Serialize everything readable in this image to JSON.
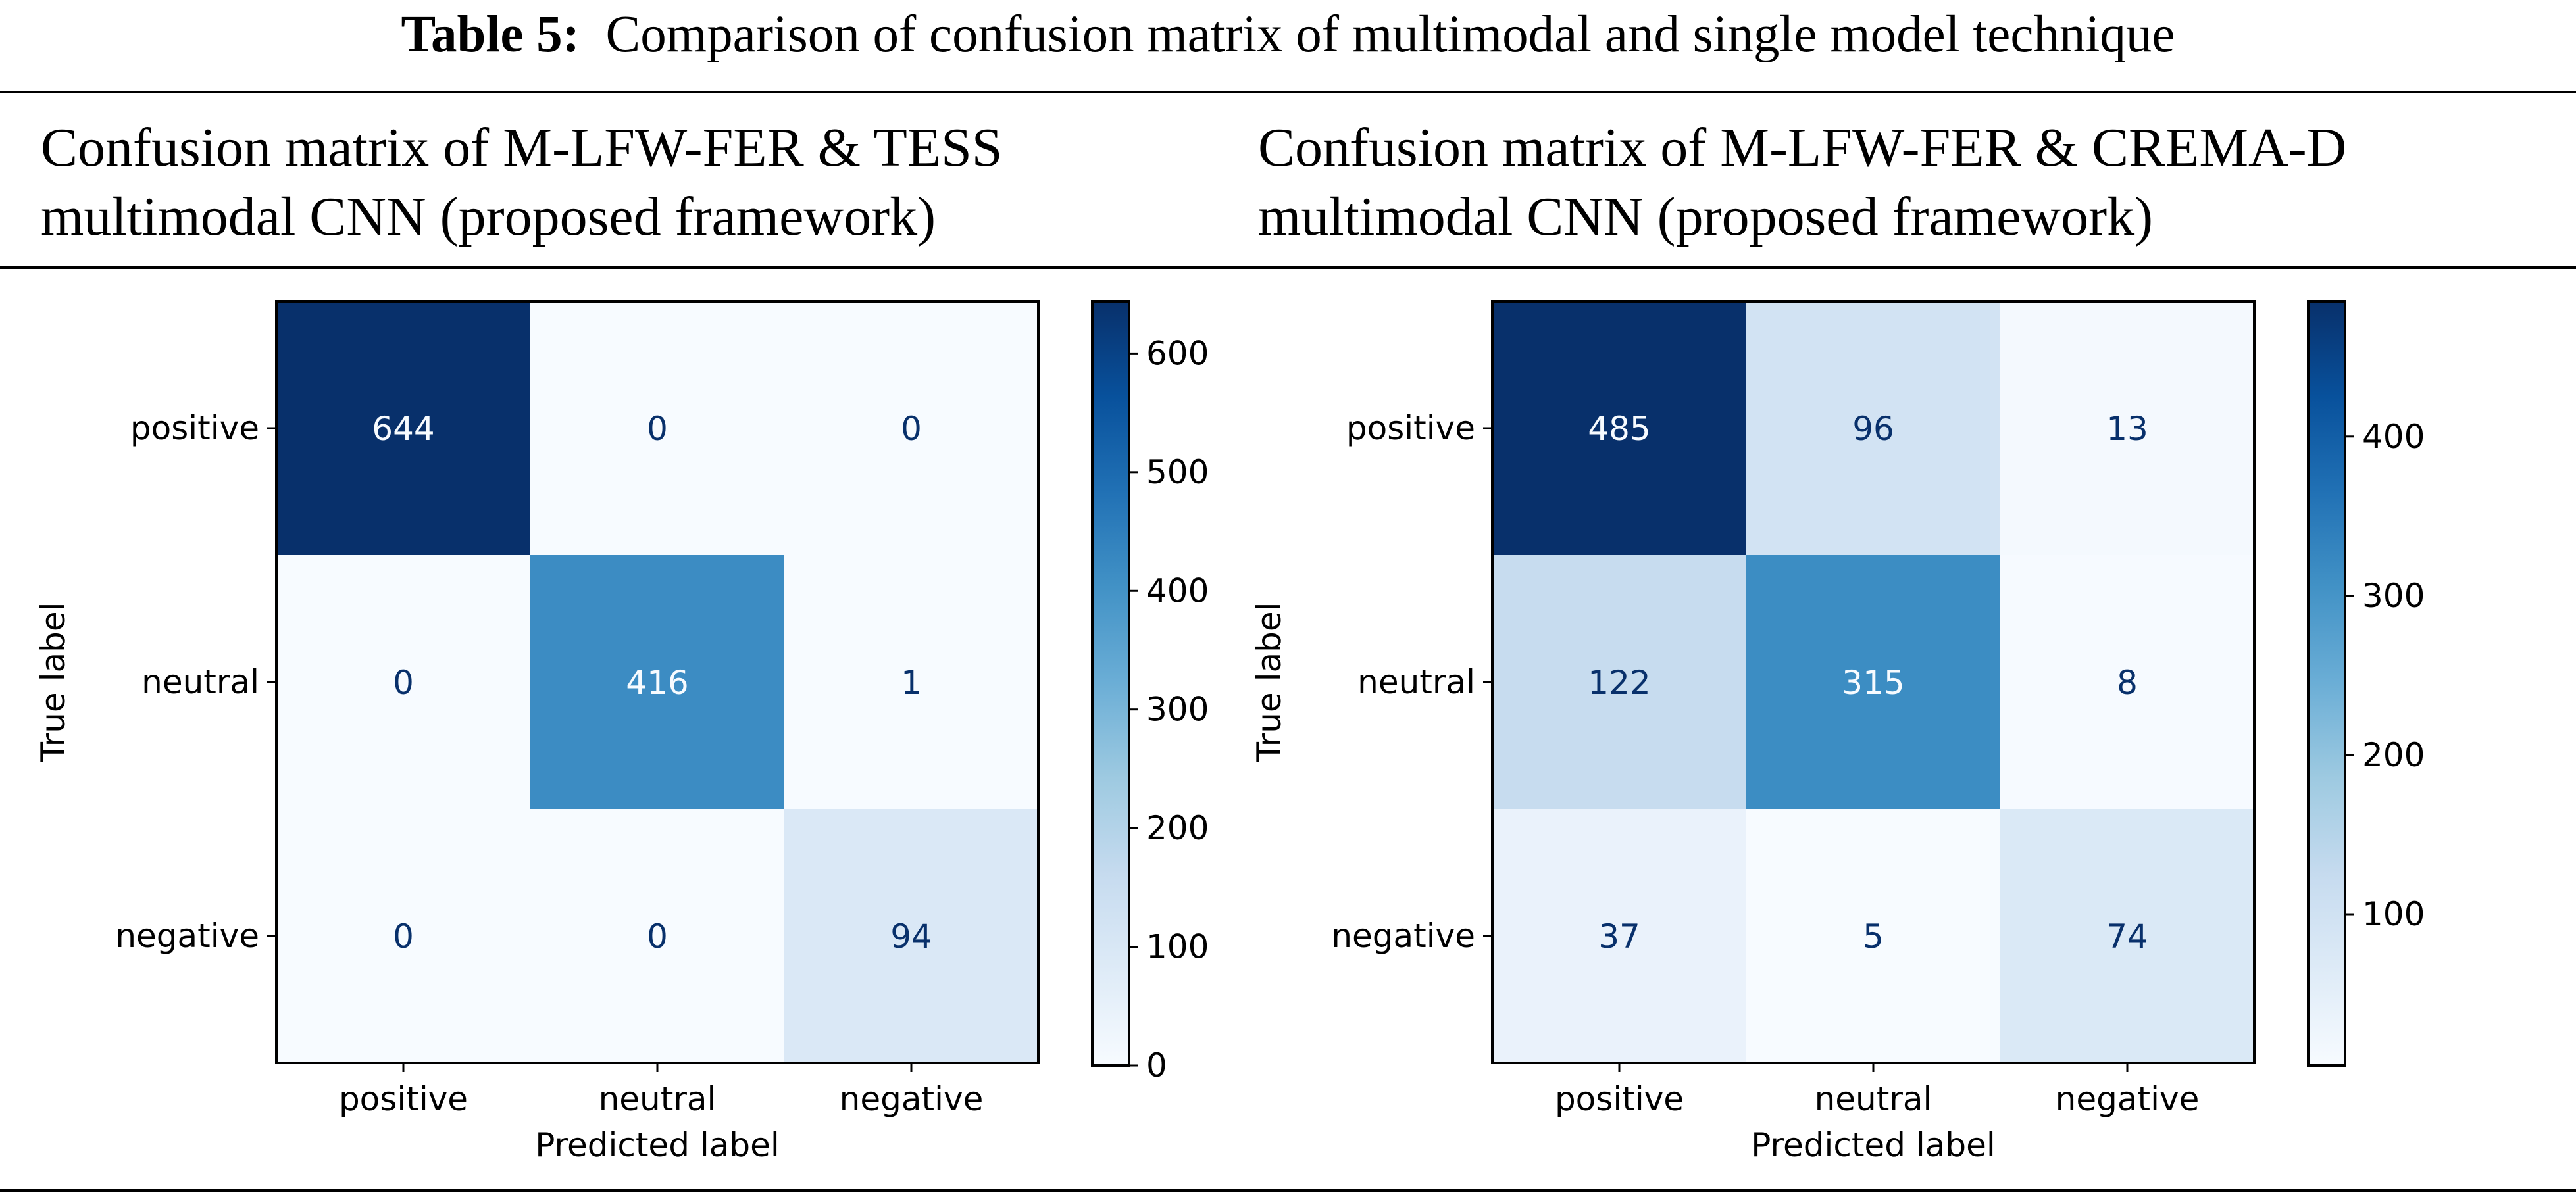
{
  "table": {
    "label": "Table 5:",
    "title": "Comparison of confusion matrix of multimodal and single model technique"
  },
  "columns": [
    {
      "line1": "Confusion matrix of M-LFW-FER & TESS",
      "line2": "multimodal CNN (proposed framework)"
    },
    {
      "line1": "Confusion matrix of M-LFW-FER & CREMA-D",
      "line2": "multimodal CNN (proposed framework)"
    }
  ],
  "chart_data": [
    {
      "type": "heatmap",
      "title": "Confusion matrix of M-LFW-FER & TESS multimodal CNN (proposed framework)",
      "xlabel": "Predicted label",
      "ylabel": "True label",
      "x_categories": [
        "positive",
        "neutral",
        "negative"
      ],
      "y_categories": [
        "positive",
        "neutral",
        "negative"
      ],
      "values": [
        [
          644,
          0,
          0
        ],
        [
          0,
          416,
          1
        ],
        [
          0,
          0,
          94
        ]
      ],
      "colormap": "Blues",
      "vmin": 0,
      "vmax": 644,
      "colorbar_ticks": [
        0,
        100,
        200,
        300,
        400,
        500,
        600
      ]
    },
    {
      "type": "heatmap",
      "title": "Confusion matrix of M-LFW-FER & CREMA-D multimodal CNN (proposed framework)",
      "xlabel": "Predicted label",
      "ylabel": "True label",
      "x_categories": [
        "positive",
        "neutral",
        "negative"
      ],
      "y_categories": [
        "positive",
        "neutral",
        "negative"
      ],
      "values": [
        [
          485,
          96,
          13
        ],
        [
          122,
          315,
          8
        ],
        [
          37,
          5,
          74
        ]
      ],
      "colormap": "Blues",
      "vmin": 5,
      "vmax": 485,
      "colorbar_ticks": [
        100,
        200,
        300,
        400
      ]
    }
  ]
}
